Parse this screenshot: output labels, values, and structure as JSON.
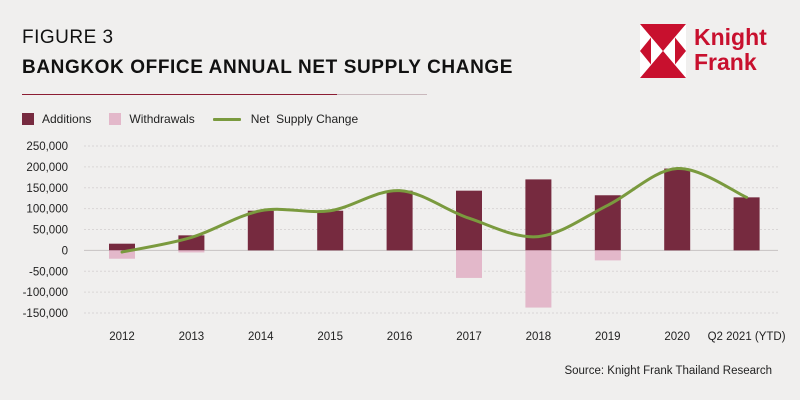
{
  "figure_label": "FIGURE 3",
  "title": "BANGKOK OFFICE ANNUAL NET SUPPLY CHANGE",
  "logo": {
    "line1": "Knight",
    "line2": "Frank",
    "color": "#c8102e"
  },
  "source": "Source: Knight Frank Thailand Research",
  "colors": {
    "additions": "#762a3f",
    "withdrawals": "#e3b8ca",
    "net_supply_change": "#7a9a3e",
    "title_rule": "#8c1d33"
  },
  "chart_data": {
    "type": "bar",
    "title": "BANGKOK OFFICE ANNUAL NET SUPPLY CHANGE",
    "xlabel": "",
    "ylabel": "",
    "categories": [
      "2012",
      "2013",
      "2014",
      "2015",
      "2016",
      "2017",
      "2018",
      "2019",
      "2020",
      "Q2 2021 (YTD)"
    ],
    "series": [
      {
        "name": "Additions",
        "type": "bar",
        "values": [
          16000,
          36000,
          95000,
          95000,
          143000,
          143000,
          170000,
          132000,
          196000,
          127000
        ]
      },
      {
        "name": "Withdrawals",
        "type": "bar",
        "values": [
          -20000,
          -5000,
          0,
          0,
          0,
          -66000,
          -137000,
          -24000,
          0,
          0
        ]
      },
      {
        "name": "Net  Supply Change",
        "type": "line",
        "values": [
          -4000,
          31000,
          95000,
          95000,
          143000,
          77000,
          33000,
          108000,
          196000,
          127000
        ]
      }
    ],
    "ylim": [
      -150000,
      250000
    ],
    "yticks": [
      -150000,
      -100000,
      -50000,
      0,
      50000,
      100000,
      150000,
      200000,
      250000
    ],
    "ytick_labels": [
      "-150,000",
      "-100,000",
      "-50,000",
      "0",
      "50,000",
      "100,000",
      "150,000",
      "200,000",
      "250,000"
    ],
    "grid": true,
    "legend_position": "top-left"
  }
}
